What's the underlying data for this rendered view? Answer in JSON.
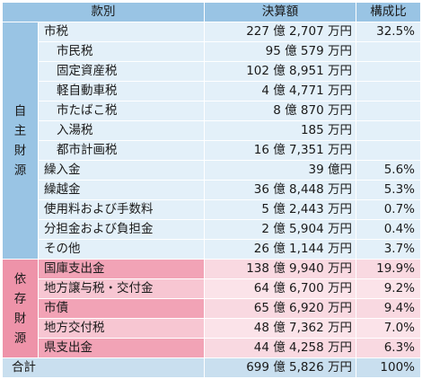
{
  "header": {
    "item": "款別",
    "amount": "決算額",
    "ratio": "構成比"
  },
  "groups": {
    "own": "自主財源",
    "dependent": "依存財源"
  },
  "own_rows": [
    {
      "label": "市税",
      "amount": "227 億 2,707 万円",
      "ratio": "32.5%",
      "sub": false
    },
    {
      "label": "市民税",
      "amount": "95 億 579 万円",
      "ratio": "",
      "sub": true
    },
    {
      "label": "固定資産税",
      "amount": "102 億 8,951 万円",
      "ratio": "",
      "sub": true
    },
    {
      "label": "軽自動車税",
      "amount": "4 億 4,771 万円",
      "ratio": "",
      "sub": true
    },
    {
      "label": "市たばこ税",
      "amount": "8 億 870 万円",
      "ratio": "",
      "sub": true
    },
    {
      "label": "入湯税",
      "amount": "185 万円",
      "ratio": "",
      "sub": true
    },
    {
      "label": "都市計画税",
      "amount": "16 億 7,351 万円",
      "ratio": "",
      "sub": true
    },
    {
      "label": "繰入金",
      "amount": "39 億円",
      "ratio": "5.6%",
      "sub": false
    },
    {
      "label": "繰越金",
      "amount": "36 億 8,448 万円",
      "ratio": "5.3%",
      "sub": false
    },
    {
      "label": "使用料および手数料",
      "amount": "5 億 2,443 万円",
      "ratio": "0.7%",
      "sub": false
    },
    {
      "label": "分担金および負担金",
      "amount": "2 億 5,904 万円",
      "ratio": "0.4%",
      "sub": false
    },
    {
      "label": "その他",
      "amount": "26 億 1,144 万円",
      "ratio": "3.7%",
      "sub": false
    }
  ],
  "dependent_rows": [
    {
      "label": "国庫支出金",
      "amount": "138 億 9,940 万円",
      "ratio": "19.9%"
    },
    {
      "label": "地方譲与税・交付金",
      "amount": "64 億 6,700 万円",
      "ratio": "9.2%"
    },
    {
      "label": "市債",
      "amount": "65 億 6,920 万円",
      "ratio": "9.4%"
    },
    {
      "label": "地方交付税",
      "amount": "48 億 7,362 万円",
      "ratio": "7.0%"
    },
    {
      "label": "県支出金",
      "amount": "44 億 4,258 万円",
      "ratio": "6.3%"
    }
  ],
  "total": {
    "label": "合計",
    "amount": "699 億 5,826 万円",
    "ratio": "100%"
  }
}
